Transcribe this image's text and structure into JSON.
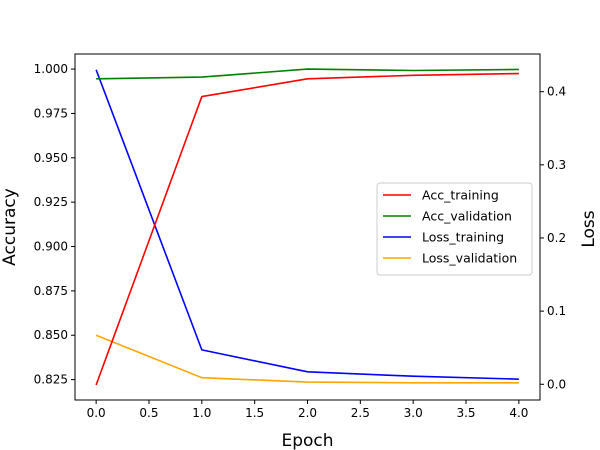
{
  "chart_data": {
    "type": "line",
    "title": "",
    "xlabel": "Epoch",
    "ylabel": "Accuracy",
    "y2label": "Loss",
    "xlim": [
      -0.2,
      4.2
    ],
    "ylim": [
      0.8135,
      1.0085
    ],
    "y2lim": [
      -0.0215,
      0.4515
    ],
    "x": [
      0,
      1,
      2,
      3,
      4
    ],
    "xticks": [
      0.0,
      0.5,
      1.0,
      1.5,
      2.0,
      2.5,
      3.0,
      3.5,
      4.0
    ],
    "xtick_labels": [
      "0.0",
      "0.5",
      "1.0",
      "1.5",
      "2.0",
      "2.5",
      "3.0",
      "3.5",
      "4.0"
    ],
    "yticks": [
      0.825,
      0.85,
      0.875,
      0.9,
      0.925,
      0.95,
      0.975,
      1.0
    ],
    "ytick_labels": [
      "0.825",
      "0.850",
      "0.875",
      "0.900",
      "0.925",
      "0.950",
      "0.975",
      "1.000"
    ],
    "y2ticks": [
      0.0,
      0.1,
      0.2,
      0.3,
      0.4
    ],
    "y2tick_labels": [
      "0.0",
      "0.1",
      "0.2",
      "0.3",
      "0.4"
    ],
    "grid": false,
    "legend_position": "center-right",
    "series": [
      {
        "name": "Acc_training",
        "axis": "left",
        "color": "#ff0000",
        "values": [
          0.822,
          0.9845,
          0.9945,
          0.9965,
          0.9975
        ]
      },
      {
        "name": "Acc_validation",
        "axis": "left",
        "color": "#008000",
        "values": [
          0.9945,
          0.9955,
          1.0,
          0.9992,
          0.9998
        ]
      },
      {
        "name": "Loss_training",
        "axis": "right",
        "color": "#0000ff",
        "values": [
          0.43,
          0.047,
          0.017,
          0.011,
          0.007
        ]
      },
      {
        "name": "Loss_validation",
        "axis": "right",
        "color": "#ffa500",
        "values": [
          0.067,
          0.009,
          0.003,
          0.002,
          0.002
        ]
      }
    ]
  }
}
